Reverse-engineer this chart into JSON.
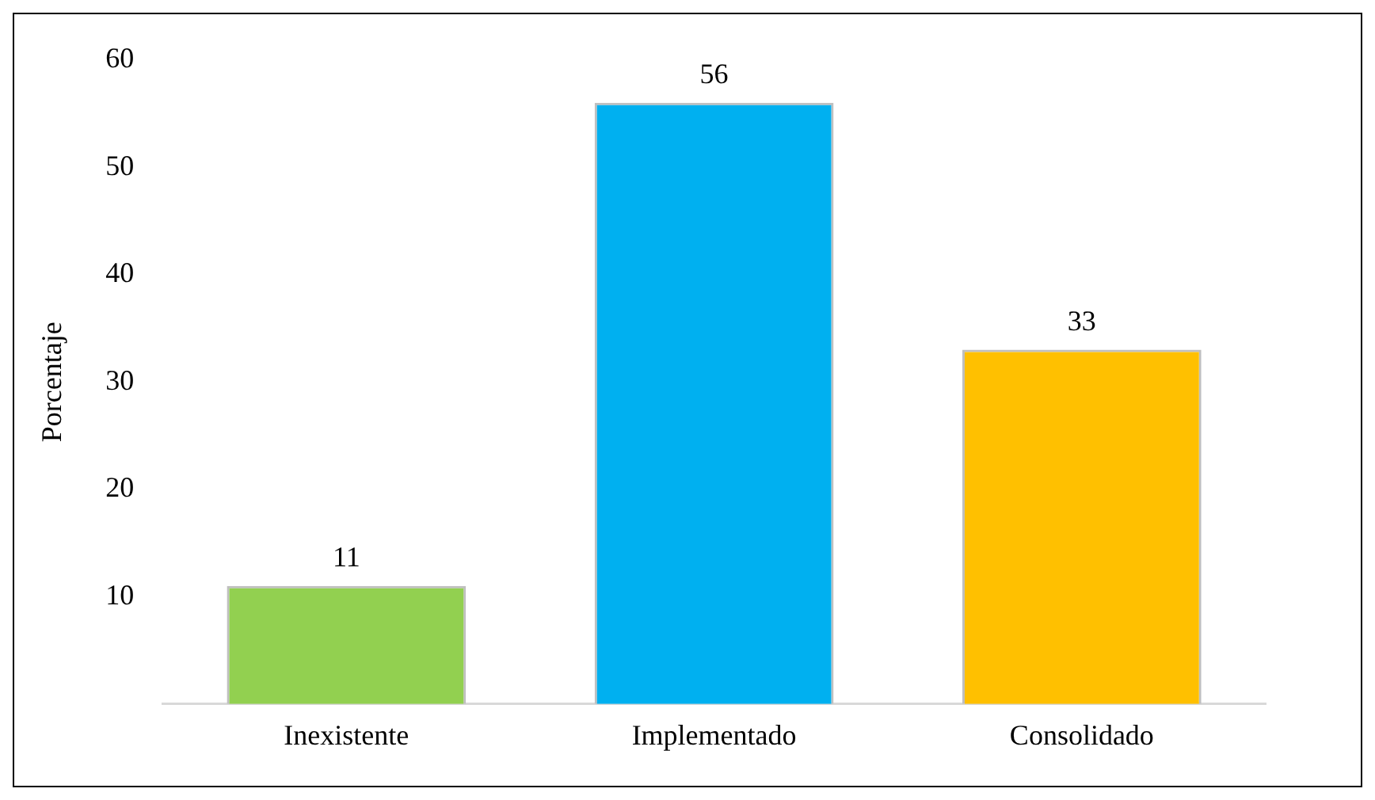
{
  "chart_data": {
    "type": "bar",
    "ylabel": "Porcentaje",
    "categories": [
      "Inexistente",
      "Implementado",
      "Consolidado"
    ],
    "values": [
      11,
      56,
      33
    ],
    "colors": [
      "#92d050",
      "#00b0f0",
      "#ffc000"
    ],
    "ylim": [
      0,
      60
    ],
    "yticks": [
      10,
      20,
      30,
      40,
      50,
      60
    ],
    "grid": false,
    "legend": false,
    "data_labels": true
  }
}
